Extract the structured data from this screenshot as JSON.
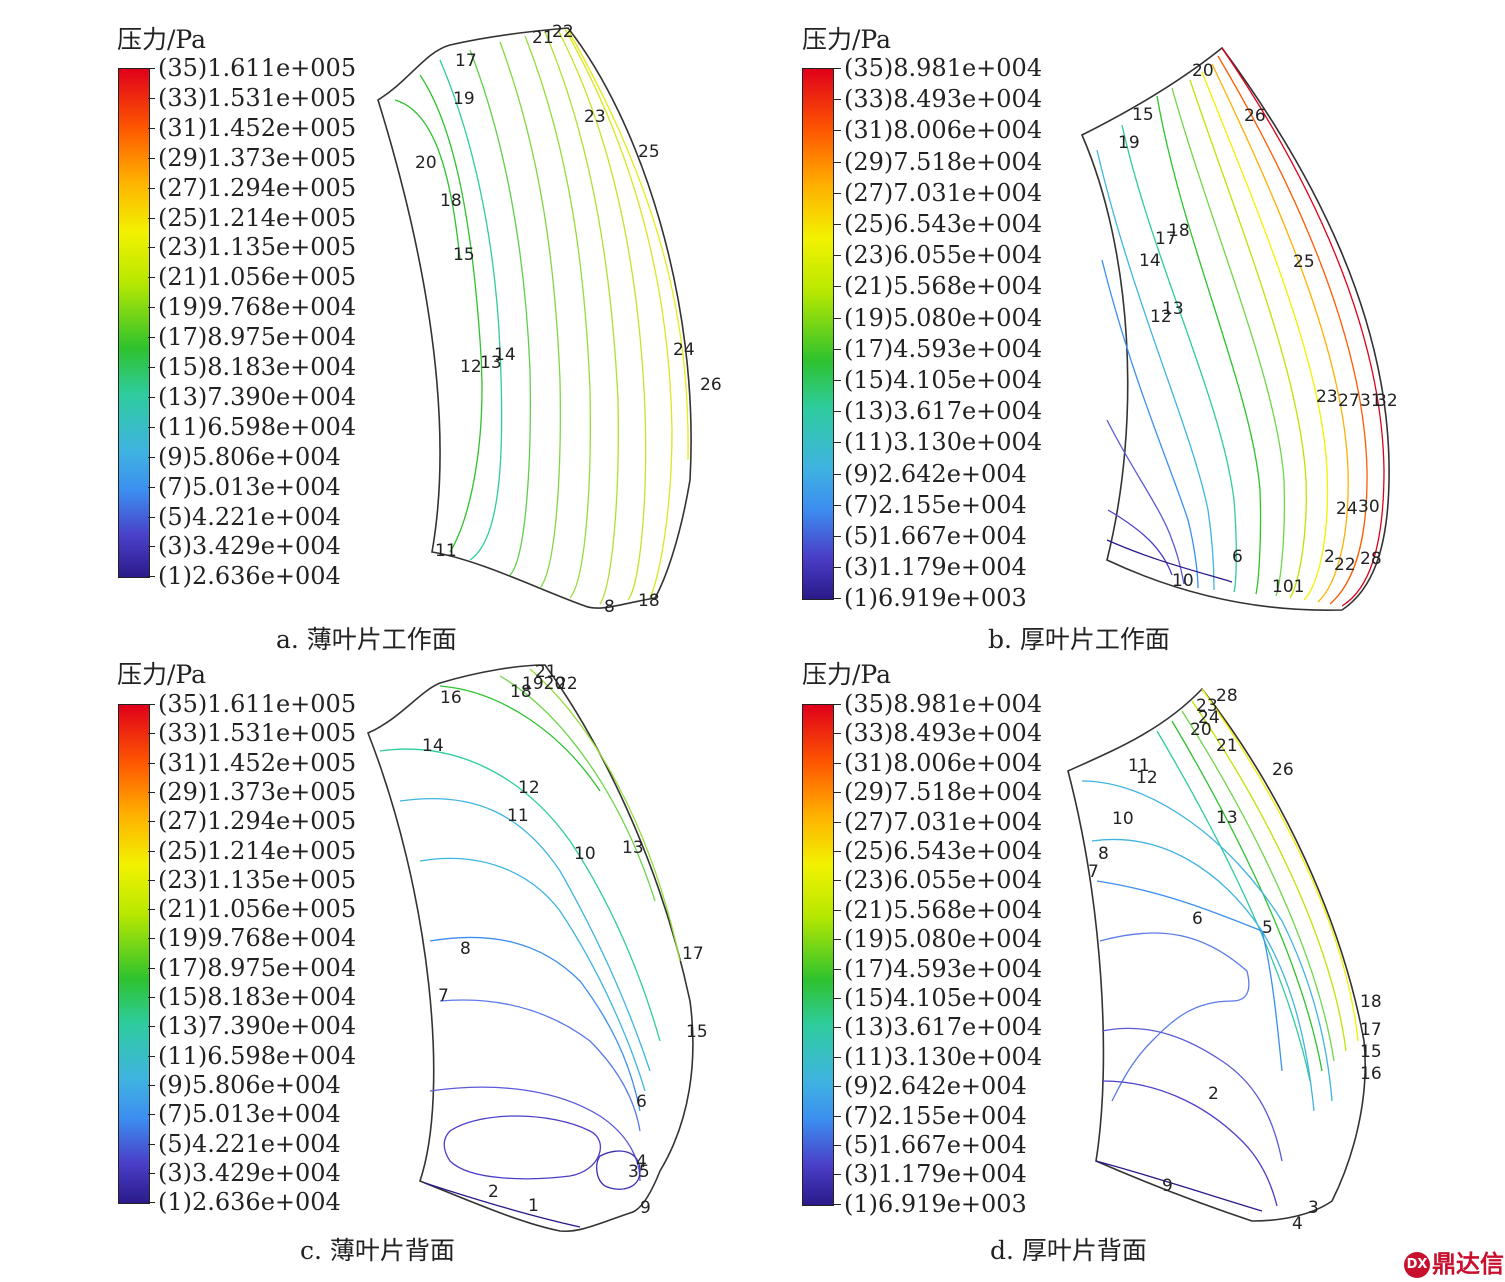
{
  "panels": [
    {
      "unit_title": "压力/Pa",
      "caption": "a. 薄叶片工作面",
      "legend": [
        "(35)1.611e+005",
        "(33)1.531e+005",
        "(31)1.452e+005",
        "(29)1.373e+005",
        "(27)1.294e+005",
        "(25)1.214e+005",
        "(23)1.135e+005",
        "(21)1.056e+005",
        "(19)9.768e+004",
        "(17)8.975e+004",
        "(15)8.183e+004",
        "(13)7.390e+004",
        "(11)6.598e+004",
        "(9)5.806e+004",
        "(7)5.013e+004",
        "(5)4.221e+004",
        "(3)3.429e+004",
        "(1)2.636e+004"
      ],
      "contour_labels": [
        "17",
        "19",
        "20",
        "18",
        "15",
        "12",
        "13",
        "14",
        "11",
        "21",
        "22",
        "23",
        "25",
        "24",
        "26",
        "8",
        "18"
      ]
    },
    {
      "unit_title": "压力/Pa",
      "caption": "b. 厚叶片工作面",
      "legend": [
        "(35)8.981e+004",
        "(33)8.493e+004",
        "(31)8.006e+004",
        "(29)7.518e+004",
        "(27)7.031e+004",
        "(25)6.543e+004",
        "(23)6.055e+004",
        "(21)5.568e+004",
        "(19)5.080e+004",
        "(17)4.593e+004",
        "(15)4.105e+004",
        "(13)3.617e+004",
        "(11)3.130e+004",
        "(9)2.642e+004",
        "(7)2.155e+004",
        "(5)1.667e+004",
        "(3)1.179e+004",
        "(1)6.919e+003"
      ],
      "contour_labels": [
        "20",
        "15",
        "19",
        "26",
        "18",
        "17",
        "14",
        "25",
        "13",
        "12",
        "23",
        "27",
        "31",
        "32",
        "24",
        "30",
        "6",
        "2",
        "22",
        "28",
        "10",
        "101"
      ]
    },
    {
      "unit_title": "压力/Pa",
      "caption": "c. 薄叶片背面",
      "legend": [
        "(35)1.611e+005",
        "(33)1.531e+005",
        "(31)1.452e+005",
        "(29)1.373e+005",
        "(27)1.294e+005",
        "(25)1.214e+005",
        "(23)1.135e+005",
        "(21)1.056e+005",
        "(19)9.768e+004",
        "(17)8.975e+004",
        "(15)8.183e+004",
        "(13)7.390e+004",
        "(11)6.598e+004",
        "(9)5.806e+004",
        "(7)5.013e+004",
        "(5)4.221e+004",
        "(3)3.429e+004",
        "(1)2.636e+004"
      ],
      "contour_labels": [
        "16",
        "21",
        "1920",
        "22",
        "18",
        "14",
        "12",
        "11",
        "10",
        "13",
        "8",
        "17",
        "7",
        "15",
        "6",
        "4",
        "35",
        "2",
        "1",
        "9"
      ]
    },
    {
      "unit_title": "压力/Pa",
      "caption": "d. 厚叶片背面",
      "legend": [
        "(35)8.981e+004",
        "(33)8.493e+004",
        "(31)8.006e+004",
        "(29)7.518e+004",
        "(27)7.031e+004",
        "(25)6.543e+004",
        "(23)6.055e+004",
        "(21)5.568e+004",
        "(19)5.080e+004",
        "(17)4.593e+004",
        "(15)4.105e+004",
        "(13)3.617e+004",
        "(11)3.130e+004",
        "(9)2.642e+004",
        "(7)2.155e+004",
        "(5)1.667e+004",
        "(3)1.179e+004",
        "(1)6.919e+003"
      ],
      "contour_labels": [
        "28",
        "23",
        "24",
        "20",
        "21",
        "26",
        "11",
        "12",
        "10",
        "13",
        "8",
        "7",
        "6",
        "5",
        "18",
        "17",
        "15",
        "16",
        "2",
        "9",
        "3",
        "4"
      ]
    }
  ],
  "brand": {
    "text": "鼎达信",
    "logo": "DX"
  },
  "colors": {
    "high": "#e0001a",
    "mid_high": "#f2f200",
    "mid": "#2ec22e",
    "mid_low": "#3fb4e0",
    "low": "#2a1a8a"
  }
}
